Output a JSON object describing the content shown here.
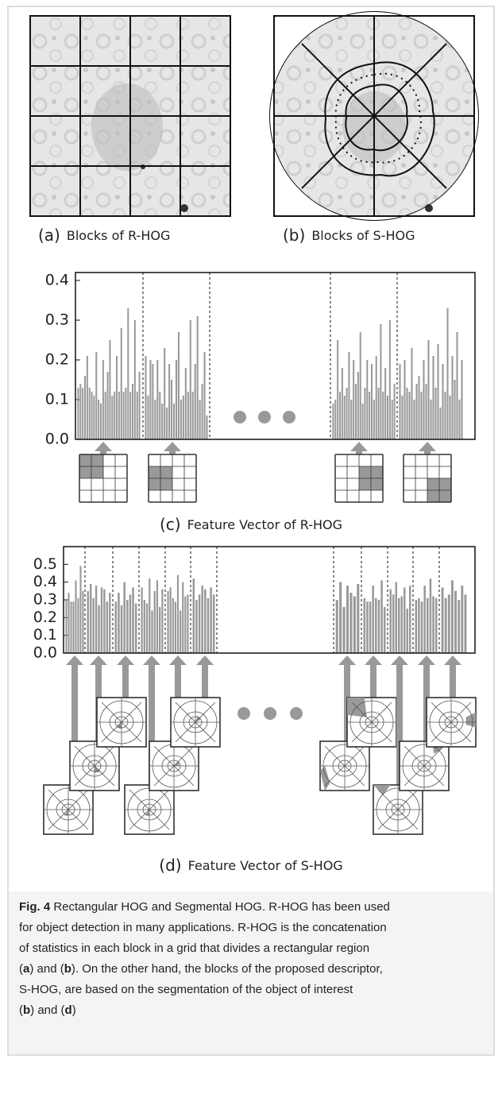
{
  "panel_a": {
    "label": "(a)",
    "caption": "Blocks of R-HOG"
  },
  "panel_b": {
    "label": "(b)",
    "caption": "Blocks of S-HOG"
  },
  "chart_data": [
    {
      "type": "bar",
      "label": "(c)",
      "title": "Feature Vector of R-HOG",
      "color": "#999999",
      "ylim": [
        0,
        0.42
      ],
      "yticks": [
        {
          "value": 0,
          "label": "0.0"
        },
        0.1,
        0.2,
        0.3,
        0.4
      ],
      "groups": [
        {
          "values": [
            0.13,
            0.14,
            0.13,
            0.16,
            0.21,
            0.13,
            0.12,
            0.11,
            0.22,
            0.1,
            0.09,
            0.2,
            0.12,
            0.17,
            0.25,
            0.11,
            0.12,
            0.21,
            0.12,
            0.28,
            0.12,
            0.13,
            0.33,
            0.12,
            0.14,
            0.3,
            0.12,
            0.17
          ]
        },
        {
          "values": [
            0.21,
            0.11,
            0.2,
            0.19,
            0.1,
            0.2,
            0.12,
            0.09,
            0.23,
            0.08,
            0.19,
            0.15,
            0.09,
            0.2,
            0.27,
            0.1,
            0.11,
            0.18,
            0.12,
            0.3,
            0.12,
            0.19,
            0.31,
            0.1,
            0.14,
            0.22,
            0.06
          ]
        },
        {
          "values": [
            0.09,
            0.1,
            0.25,
            0.12,
            0.18,
            0.11,
            0.13,
            0.22,
            0.1,
            0.2,
            0.14,
            0.17,
            0.27,
            0.09,
            0.13,
            0.2,
            0.12,
            0.19,
            0.1,
            0.21,
            0.13,
            0.29,
            0.12,
            0.18,
            0.11,
            0.3,
            0.1,
            0.14
          ]
        },
        {
          "values": [
            0.19,
            0.11,
            0.2,
            0.13,
            0.12,
            0.23,
            0.1,
            0.14,
            0.16,
            0.12,
            0.2,
            0.14,
            0.25,
            0.1,
            0.21,
            0.13,
            0.24,
            0.08,
            0.19,
            0.12,
            0.33,
            0.11,
            0.21,
            0.15,
            0.27,
            0.1,
            0.2
          ]
        }
      ]
    },
    {
      "type": "bar",
      "label": "(d)",
      "title": "Feature Vector of S-HOG",
      "color": "#999999",
      "ylim": [
        0,
        0.6
      ],
      "yticks": [
        {
          "value": 0,
          "label": "0.0"
        },
        0.1,
        0.2,
        0.3,
        0.4,
        0.5
      ],
      "groups": [
        {
          "values": [
            0.3,
            0.34,
            0.29,
            0.29,
            0.41,
            0.31,
            0.49,
            0.35
          ]
        },
        {
          "values": [
            0.35,
            0.39,
            0.31,
            0.38,
            0.27,
            0.37,
            0.36,
            0.29,
            0.34
          ]
        },
        {
          "values": [
            0.29,
            0.34,
            0.27,
            0.4,
            0.3,
            0.33,
            0.37,
            0.28
          ]
        },
        {
          "values": [
            0.37,
            0.3,
            0.28,
            0.42,
            0.24,
            0.35,
            0.41,
            0.26,
            0.36
          ]
        },
        {
          "values": [
            0.35,
            0.37,
            0.31,
            0.29,
            0.44,
            0.24,
            0.4,
            0.32,
            0.33
          ]
        },
        {
          "values": [
            0.42,
            0.3,
            0.33,
            0.38,
            0.36,
            0.31,
            0.37,
            0.33
          ]
        },
        {
          "values": [
            0.3,
            0.4,
            0.26,
            0.38,
            0.34,
            0.32,
            0.39
          ]
        },
        {
          "values": [
            0.31,
            0.29,
            0.29,
            0.38,
            0.31,
            0.3,
            0.41,
            0.26
          ]
        },
        {
          "values": [
            0.36,
            0.33,
            0.4,
            0.31,
            0.32,
            0.37,
            0.25,
            0.38
          ]
        },
        {
          "values": [
            0.3,
            0.31,
            0.29,
            0.38,
            0.31,
            0.42,
            0.32,
            0.31
          ]
        },
        {
          "values": [
            0.37,
            0.31,
            0.33,
            0.41,
            0.35,
            0.3,
            0.38,
            0.33
          ]
        }
      ]
    }
  ],
  "caption": {
    "lines": [
      [
        {
          "t": "Fig. 4",
          "b": true
        },
        {
          "t": " Rectangular HOG and Segmental HOG. R-HOG has been used"
        }
      ],
      [
        {
          "t": "for object detection in many applications. R-HOG is the concatenation"
        }
      ],
      [
        {
          "t": "of statistics in each block in a grid that divides a rectangular region"
        }
      ],
      [
        {
          "t": "("
        },
        {
          "t": "a",
          "b": true
        },
        {
          "t": ") and ("
        },
        {
          "t": "b",
          "b": true
        },
        {
          "t": "). On the other hand, the blocks of the proposed descriptor,"
        }
      ],
      [
        {
          "t": "S-HOG, are based on the segmentation of the object of interest"
        }
      ],
      [
        {
          "t": "("
        },
        {
          "t": "b",
          "b": true
        },
        {
          "t": ") and ("
        },
        {
          "t": "d",
          "b": true
        },
        {
          "t": ")"
        }
      ]
    ]
  }
}
